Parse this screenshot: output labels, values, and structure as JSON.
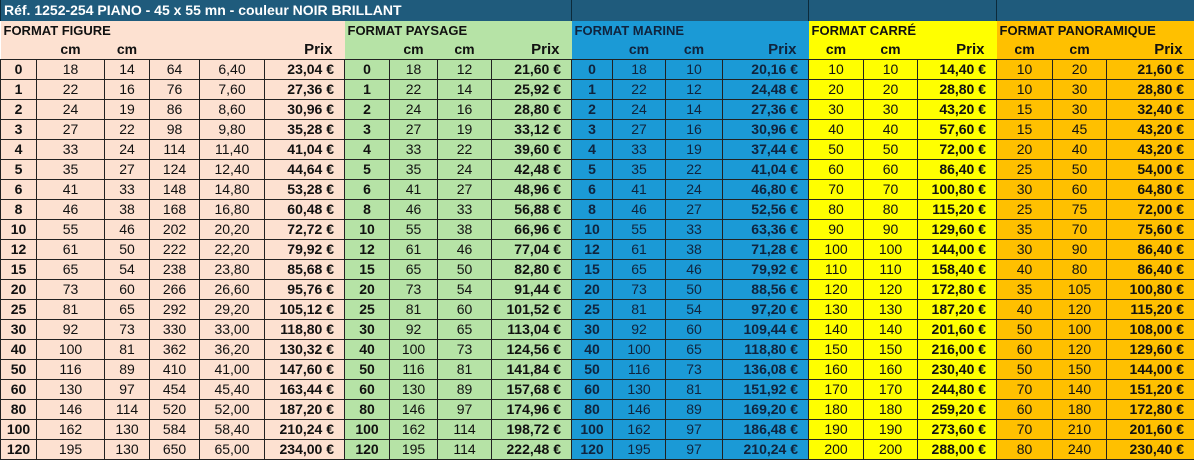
{
  "title": "Réf. 1252-254 PIANO - 45 x 55 mn - couleur NOIR BRILLANT",
  "colors": {
    "title_bg": "#1f5b7c",
    "figure": "#fde1d1",
    "paysage": "#b6e3a6",
    "marine": "#1b9ad6",
    "carre": "#ffff00",
    "panoramique": "#ffc000"
  },
  "sections": {
    "figure": {
      "label": "FORMAT FIGURE",
      "headers": [
        "",
        "cm",
        "cm",
        "",
        "",
        "Prix"
      ],
      "rows": [
        [
          "0",
          "18",
          "14",
          "64",
          "6,40",
          "23,04 €"
        ],
        [
          "1",
          "22",
          "16",
          "76",
          "7,60",
          "27,36 €"
        ],
        [
          "2",
          "24",
          "19",
          "86",
          "8,60",
          "30,96 €"
        ],
        [
          "3",
          "27",
          "22",
          "98",
          "9,80",
          "35,28 €"
        ],
        [
          "4",
          "33",
          "24",
          "114",
          "11,40",
          "41,04 €"
        ],
        [
          "5",
          "35",
          "27",
          "124",
          "12,40",
          "44,64 €"
        ],
        [
          "6",
          "41",
          "33",
          "148",
          "14,80",
          "53,28 €"
        ],
        [
          "8",
          "46",
          "38",
          "168",
          "16,80",
          "60,48 €"
        ],
        [
          "10",
          "55",
          "46",
          "202",
          "20,20",
          "72,72 €"
        ],
        [
          "12",
          "61",
          "50",
          "222",
          "22,20",
          "79,92 €"
        ],
        [
          "15",
          "65",
          "54",
          "238",
          "23,80",
          "85,68 €"
        ],
        [
          "20",
          "73",
          "60",
          "266",
          "26,60",
          "95,76 €"
        ],
        [
          "25",
          "81",
          "65",
          "292",
          "29,20",
          "105,12 €"
        ],
        [
          "30",
          "92",
          "73",
          "330",
          "33,00",
          "118,80 €"
        ],
        [
          "40",
          "100",
          "81",
          "362",
          "36,20",
          "130,32 €"
        ],
        [
          "50",
          "116",
          "89",
          "410",
          "41,00",
          "147,60 €"
        ],
        [
          "60",
          "130",
          "97",
          "454",
          "45,40",
          "163,44 €"
        ],
        [
          "80",
          "146",
          "114",
          "520",
          "52,00",
          "187,20 €"
        ],
        [
          "100",
          "162",
          "130",
          "584",
          "58,40",
          "210,24 €"
        ],
        [
          "120",
          "195",
          "130",
          "650",
          "65,00",
          "234,00 €"
        ]
      ]
    },
    "paysage": {
      "label": "FORMAT PAYSAGE",
      "headers": [
        "",
        "cm",
        "cm",
        "Prix"
      ],
      "rows": [
        [
          "0",
          "18",
          "12",
          "21,60 €"
        ],
        [
          "1",
          "22",
          "14",
          "25,92 €"
        ],
        [
          "2",
          "24",
          "16",
          "28,80 €"
        ],
        [
          "3",
          "27",
          "19",
          "33,12 €"
        ],
        [
          "4",
          "33",
          "22",
          "39,60 €"
        ],
        [
          "5",
          "35",
          "24",
          "42,48 €"
        ],
        [
          "6",
          "41",
          "27",
          "48,96 €"
        ],
        [
          "8",
          "46",
          "33",
          "56,88 €"
        ],
        [
          "10",
          "55",
          "38",
          "66,96 €"
        ],
        [
          "12",
          "61",
          "46",
          "77,04 €"
        ],
        [
          "15",
          "65",
          "50",
          "82,80 €"
        ],
        [
          "20",
          "73",
          "54",
          "91,44 €"
        ],
        [
          "25",
          "81",
          "60",
          "101,52 €"
        ],
        [
          "30",
          "92",
          "65",
          "113,04 €"
        ],
        [
          "40",
          "100",
          "73",
          "124,56 €"
        ],
        [
          "50",
          "116",
          "81",
          "141,84 €"
        ],
        [
          "60",
          "130",
          "89",
          "157,68 €"
        ],
        [
          "80",
          "146",
          "97",
          "174,96 €"
        ],
        [
          "100",
          "162",
          "114",
          "198,72 €"
        ],
        [
          "120",
          "195",
          "114",
          "222,48 €"
        ]
      ]
    },
    "marine": {
      "label": "FORMAT MARINE",
      "headers": [
        "",
        "cm",
        "cm",
        "Prix"
      ],
      "rows": [
        [
          "0",
          "18",
          "10",
          "20,16 €"
        ],
        [
          "1",
          "22",
          "12",
          "24,48 €"
        ],
        [
          "2",
          "24",
          "14",
          "27,36 €"
        ],
        [
          "3",
          "27",
          "16",
          "30,96 €"
        ],
        [
          "4",
          "33",
          "19",
          "37,44 €"
        ],
        [
          "5",
          "35",
          "22",
          "41,04 €"
        ],
        [
          "6",
          "41",
          "24",
          "46,80 €"
        ],
        [
          "8",
          "46",
          "27",
          "52,56 €"
        ],
        [
          "10",
          "55",
          "33",
          "63,36 €"
        ],
        [
          "12",
          "61",
          "38",
          "71,28 €"
        ],
        [
          "15",
          "65",
          "46",
          "79,92 €"
        ],
        [
          "20",
          "73",
          "50",
          "88,56 €"
        ],
        [
          "25",
          "81",
          "54",
          "97,20 €"
        ],
        [
          "30",
          "92",
          "60",
          "109,44 €"
        ],
        [
          "40",
          "100",
          "65",
          "118,80 €"
        ],
        [
          "50",
          "116",
          "73",
          "136,08 €"
        ],
        [
          "60",
          "130",
          "81",
          "151,92 €"
        ],
        [
          "80",
          "146",
          "89",
          "169,20 €"
        ],
        [
          "100",
          "162",
          "97",
          "186,48 €"
        ],
        [
          "120",
          "195",
          "97",
          "210,24 €"
        ]
      ]
    },
    "carre": {
      "label": "FORMAT CARRÉ",
      "headers": [
        "cm",
        "cm",
        "Prix"
      ],
      "rows": [
        [
          "10",
          "10",
          "14,40 €"
        ],
        [
          "20",
          "20",
          "28,80 €"
        ],
        [
          "30",
          "30",
          "43,20 €"
        ],
        [
          "40",
          "40",
          "57,60 €"
        ],
        [
          "50",
          "50",
          "72,00 €"
        ],
        [
          "60",
          "60",
          "86,40 €"
        ],
        [
          "70",
          "70",
          "100,80 €"
        ],
        [
          "80",
          "80",
          "115,20 €"
        ],
        [
          "90",
          "90",
          "129,60 €"
        ],
        [
          "100",
          "100",
          "144,00 €"
        ],
        [
          "110",
          "110",
          "158,40 €"
        ],
        [
          "120",
          "120",
          "172,80 €"
        ],
        [
          "130",
          "130",
          "187,20 €"
        ],
        [
          "140",
          "140",
          "201,60 €"
        ],
        [
          "150",
          "150",
          "216,00 €"
        ],
        [
          "160",
          "160",
          "230,40 €"
        ],
        [
          "170",
          "170",
          "244,80 €"
        ],
        [
          "180",
          "180",
          "259,20 €"
        ],
        [
          "190",
          "190",
          "273,60 €"
        ],
        [
          "200",
          "200",
          "288,00 €"
        ]
      ]
    },
    "panoramique": {
      "label": "FORMAT PANORAMIQUE",
      "headers": [
        "cm",
        "cm",
        "Prix"
      ],
      "rows": [
        [
          "10",
          "20",
          "21,60 €"
        ],
        [
          "10",
          "30",
          "28,80 €"
        ],
        [
          "15",
          "30",
          "32,40 €"
        ],
        [
          "15",
          "45",
          "43,20 €"
        ],
        [
          "20",
          "40",
          "43,20 €"
        ],
        [
          "25",
          "50",
          "54,00 €"
        ],
        [
          "30",
          "60",
          "64,80 €"
        ],
        [
          "25",
          "75",
          "72,00 €"
        ],
        [
          "35",
          "70",
          "75,60 €"
        ],
        [
          "30",
          "90",
          "86,40 €"
        ],
        [
          "40",
          "80",
          "86,40 €"
        ],
        [
          "35",
          "105",
          "100,80 €"
        ],
        [
          "40",
          "120",
          "115,20 €"
        ],
        [
          "50",
          "100",
          "108,00 €"
        ],
        [
          "60",
          "120",
          "129,60 €"
        ],
        [
          "50",
          "150",
          "144,00 €"
        ],
        [
          "70",
          "140",
          "151,20 €"
        ],
        [
          "60",
          "180",
          "172,80 €"
        ],
        [
          "70",
          "210",
          "201,60 €"
        ],
        [
          "80",
          "240",
          "230,40 €"
        ]
      ]
    }
  }
}
